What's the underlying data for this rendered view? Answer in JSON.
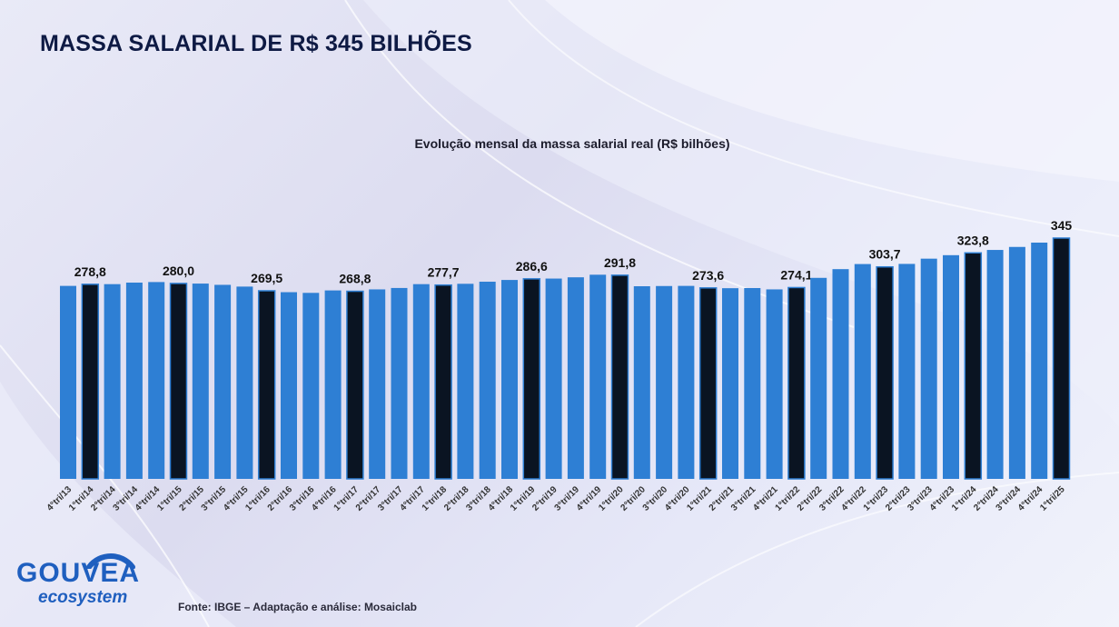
{
  "header": {
    "title": "MASSA SALARIAL DE R$ 345 BILHÕES"
  },
  "footer": {
    "source": "Fonte: IBGE – Adaptação e análise: Mosaiclab"
  },
  "logo": {
    "main": "GOUVEA",
    "sub": "ecosystem"
  },
  "colors": {
    "bar": "#2e7fd4",
    "highlight": "#0a1422",
    "title": "#0e1a44",
    "logo": "#1f5fbf"
  },
  "chart_data": {
    "type": "bar",
    "title": "Evolução mensal da massa salarial real (R$ bilhões)",
    "xlabel": "",
    "ylabel": "",
    "ylim": [
      0,
      345
    ],
    "grid": false,
    "categories": [
      "4°tri/13",
      "1°tri/14",
      "2°tri/14",
      "3°tri/14",
      "4°tri/14",
      "1°tri/15",
      "2°tri/15",
      "3°tri/15",
      "4°tri/15",
      "1°tri/16",
      "2°tri/16",
      "3°tri/16",
      "4°tri/16",
      "1°tri/17",
      "2°tri/17",
      "3°tri/17",
      "4°tri/17",
      "1°tri/18",
      "2°tri/18",
      "3°tri/18",
      "4°tri/18",
      "1°tri/19",
      "2°tri/19",
      "3°tri/19",
      "4°tri/19",
      "1°tri/20",
      "2°tri/20",
      "3°tri/20",
      "4°tri/20",
      "1°tri/21",
      "2°tri/21",
      "3°tri/21",
      "4°tri/21",
      "1°tri/22",
      "2°tri/22",
      "3°tri/22",
      "4°tri/22",
      "1°tri/23",
      "2°tri/23",
      "3°tri/23",
      "4°tri/23",
      "1°tri/24",
      "2°tri/24",
      "3°tri/24",
      "4°tri/24",
      "1°tri/25"
    ],
    "values": [
      276.5,
      278.8,
      279.0,
      281.2,
      282.0,
      280.0,
      279.8,
      278.0,
      275.5,
      269.5,
      267.5,
      266.5,
      270.0,
      268.8,
      271.5,
      273.5,
      279.0,
      277.7,
      279.5,
      282.5,
      285.0,
      286.6,
      287.0,
      288.8,
      292.5,
      291.8,
      276.0,
      276.3,
      276.5,
      273.6,
      273.2,
      273.4,
      271.5,
      274.1,
      288.0,
      300.5,
      307.8,
      303.7,
      308.0,
      315.5,
      320.5,
      323.8,
      328.0,
      332.3,
      338.5,
      345.0
    ],
    "highlight_categories": [
      "1°tri/14",
      "1°tri/15",
      "1°tri/16",
      "1°tri/17",
      "1°tri/18",
      "1°tri/19",
      "1°tri/20",
      "1°tri/21",
      "1°tri/22",
      "1°tri/23",
      "1°tri/24",
      "1°tri/25"
    ],
    "data_labels": [
      {
        "category": "1°tri/14",
        "text": "278,8"
      },
      {
        "category": "1°tri/15",
        "text": "280,0"
      },
      {
        "category": "1°tri/16",
        "text": "269,5"
      },
      {
        "category": "1°tri/17",
        "text": "268,8"
      },
      {
        "category": "1°tri/18",
        "text": "277,7"
      },
      {
        "category": "1°tri/19",
        "text": "286,6"
      },
      {
        "category": "1°tri/20",
        "text": "291,8"
      },
      {
        "category": "1°tri/21",
        "text": "273,6"
      },
      {
        "category": "1°tri/22",
        "text": "274,1"
      },
      {
        "category": "1°tri/23",
        "text": "303,7"
      },
      {
        "category": "1°tri/24",
        "text": "323,8"
      },
      {
        "category": "1°tri/25",
        "text": "345"
      }
    ]
  }
}
